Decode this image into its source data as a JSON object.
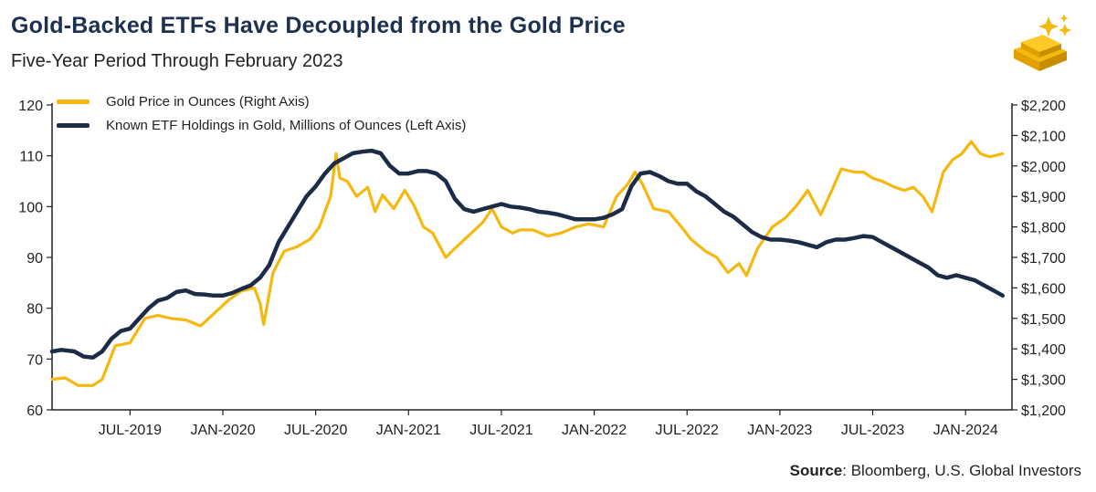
{
  "header": {
    "title": "Gold-Backed ETFs Have Decoupled from the Gold Price",
    "subtitle": "Five-Year Period Through February 2023"
  },
  "legend": {
    "gold_label": "Gold Price in Ounces (Right Axis)",
    "etf_label": "Known ETF Holdings in Gold, Millions of Ounces (Left Axis)"
  },
  "source": {
    "label": "Source",
    "text": ": Bloomberg, U.S. Global Investors"
  },
  "colors": {
    "gold": "#f5b80f",
    "etf": "#1c2c48",
    "axis": "#222222"
  },
  "icons": {
    "logo": "gold-bars-sparkle-icon"
  },
  "chart_data": {
    "type": "line",
    "title": "Gold-Backed ETFs Have Decoupled from the Gold Price",
    "x_range": [
      2019.08,
      2024.25
    ],
    "x_ticks": [
      {
        "value": 2019.5,
        "label": "JUL-2019"
      },
      {
        "value": 2020.0,
        "label": "JAN-2020"
      },
      {
        "value": 2020.5,
        "label": "JUL-2020"
      },
      {
        "value": 2021.0,
        "label": "JAN-2021"
      },
      {
        "value": 2021.5,
        "label": "JUL-2021"
      },
      {
        "value": 2022.0,
        "label": "JAN-2022"
      },
      {
        "value": 2022.5,
        "label": "JUL-2022"
      },
      {
        "value": 2023.0,
        "label": "JAN-2023"
      },
      {
        "value": 2023.5,
        "label": "JUL-2023"
      },
      {
        "value": 2024.0,
        "label": "JAN-2024"
      }
    ],
    "left_axis": {
      "label": "Known ETF Holdings in Gold, Millions of Ounces",
      "range": [
        60,
        120
      ],
      "ticks": [
        60,
        70,
        80,
        90,
        100,
        110,
        120
      ],
      "tick_labels": [
        "60",
        "70",
        "80",
        "90",
        "100",
        "110",
        "120"
      ]
    },
    "right_axis": {
      "label": "Gold Price in Ounces",
      "range": [
        1200,
        2200
      ],
      "ticks": [
        1200,
        1300,
        1400,
        1500,
        1600,
        1700,
        1800,
        1900,
        2000,
        2100,
        2200
      ],
      "tick_labels": [
        "$1,200",
        "$1,300",
        "$1,400",
        "$1,500",
        "$1,600",
        "$1,700",
        "$1,800",
        "$1,900",
        "$2,000",
        "$2,100",
        "$2,200"
      ]
    },
    "series": [
      {
        "name": "Gold Price in Ounces (Right Axis)",
        "axis": "right",
        "color": "#f5b80f",
        "x": [
          2019.08,
          2019.15,
          2019.22,
          2019.3,
          2019.35,
          2019.42,
          2019.5,
          2019.58,
          2019.65,
          2019.72,
          2019.8,
          2019.88,
          2019.95,
          2020.03,
          2020.1,
          2020.17,
          2020.2,
          2020.22,
          2020.27,
          2020.33,
          2020.4,
          2020.47,
          2020.52,
          2020.58,
          2020.61,
          2020.63,
          2020.67,
          2020.72,
          2020.78,
          2020.82,
          2020.86,
          2020.92,
          2020.98,
          2021.03,
          2021.08,
          2021.13,
          2021.2,
          2021.25,
          2021.33,
          2021.4,
          2021.45,
          2021.5,
          2021.56,
          2021.6,
          2021.67,
          2021.75,
          2021.82,
          2021.9,
          2021.97,
          2022.05,
          2022.12,
          2022.18,
          2022.22,
          2022.26,
          2022.32,
          2022.4,
          2022.47,
          2022.52,
          2022.6,
          2022.66,
          2022.72,
          2022.78,
          2022.82,
          2022.88,
          2022.96,
          2023.03,
          2023.09,
          2023.15,
          2023.22,
          2023.28,
          2023.33,
          2023.4,
          2023.45,
          2023.5,
          2023.55,
          2023.62,
          2023.67,
          2023.72,
          2023.77,
          2023.82,
          2023.88,
          2023.93,
          2023.98,
          2024.03,
          2024.08,
          2024.13,
          2024.2
        ],
        "values": [
          1300,
          1305,
          1280,
          1280,
          1300,
          1410,
          1420,
          1500,
          1510,
          1500,
          1495,
          1475,
          1515,
          1560,
          1590,
          1600,
          1550,
          1480,
          1650,
          1720,
          1735,
          1760,
          1800,
          1900,
          2040,
          1960,
          1950,
          1900,
          1930,
          1850,
          1905,
          1860,
          1920,
          1870,
          1800,
          1780,
          1700,
          1730,
          1775,
          1815,
          1860,
          1800,
          1780,
          1790,
          1790,
          1770,
          1780,
          1800,
          1810,
          1800,
          1900,
          1940,
          1980,
          1940,
          1860,
          1850,
          1800,
          1760,
          1720,
          1700,
          1650,
          1680,
          1640,
          1730,
          1800,
          1830,
          1870,
          1920,
          1840,
          1920,
          1990,
          1980,
          1980,
          1960,
          1950,
          1930,
          1920,
          1930,
          1900,
          1850,
          1980,
          2020,
          2040,
          2080,
          2040,
          2030,
          2040
        ]
      },
      {
        "name": "Known ETF Holdings in Gold, Millions of Ounces (Left Axis)",
        "axis": "left",
        "color": "#1c2c48",
        "x": [
          2019.08,
          2019.13,
          2019.2,
          2019.25,
          2019.3,
          2019.35,
          2019.4,
          2019.45,
          2019.5,
          2019.55,
          2019.6,
          2019.65,
          2019.7,
          2019.75,
          2019.8,
          2019.85,
          2019.9,
          2019.95,
          2020.0,
          2020.05,
          2020.1,
          2020.15,
          2020.2,
          2020.25,
          2020.3,
          2020.35,
          2020.4,
          2020.45,
          2020.5,
          2020.55,
          2020.6,
          2020.65,
          2020.7,
          2020.75,
          2020.8,
          2020.85,
          2020.9,
          2020.95,
          2021.0,
          2021.05,
          2021.1,
          2021.15,
          2021.2,
          2021.25,
          2021.3,
          2021.35,
          2021.4,
          2021.45,
          2021.5,
          2021.55,
          2021.6,
          2021.65,
          2021.7,
          2021.75,
          2021.8,
          2021.85,
          2021.9,
          2021.95,
          2022.0,
          2022.05,
          2022.1,
          2022.15,
          2022.2,
          2022.25,
          2022.3,
          2022.35,
          2022.4,
          2022.45,
          2022.5,
          2022.55,
          2022.6,
          2022.65,
          2022.7,
          2022.75,
          2022.8,
          2022.85,
          2022.9,
          2022.95,
          2023.0,
          2023.05,
          2023.1,
          2023.15,
          2023.2,
          2023.25,
          2023.3,
          2023.35,
          2023.4,
          2023.45,
          2023.5,
          2023.55,
          2023.6,
          2023.65,
          2023.7,
          2023.75,
          2023.8,
          2023.85,
          2023.9,
          2023.95,
          2024.0,
          2024.05,
          2024.1,
          2024.15,
          2024.2
        ],
        "values": [
          71.5,
          71.8,
          71.5,
          70.5,
          70.3,
          71.5,
          74,
          75.5,
          76,
          78,
          80,
          81.5,
          82,
          83.2,
          83.5,
          82.8,
          82.7,
          82.5,
          82.5,
          83,
          83.8,
          84.5,
          86,
          88.5,
          93,
          96,
          99,
          102,
          104,
          106.5,
          108.5,
          109.5,
          110.5,
          110.8,
          111,
          110.5,
          108,
          106.5,
          106.5,
          107,
          107,
          106.5,
          105,
          101.5,
          99.5,
          99,
          99.5,
          100,
          100.5,
          100,
          99.8,
          99.5,
          99,
          98.8,
          98.5,
          98,
          97.5,
          97.5,
          97.5,
          97.8,
          98.5,
          99.5,
          104,
          106.5,
          106.8,
          106,
          105,
          104.5,
          104.5,
          103,
          102,
          100.5,
          99,
          98,
          96.5,
          95,
          94,
          93.5,
          93.5,
          93.3,
          93,
          92.5,
          92,
          93,
          93.5,
          93.5,
          93.8,
          94.2,
          94,
          93,
          92,
          91,
          90,
          89,
          88,
          86.5,
          86,
          86.5,
          86,
          85.5,
          84.5,
          83.5,
          82.5
        ]
      }
    ]
  }
}
